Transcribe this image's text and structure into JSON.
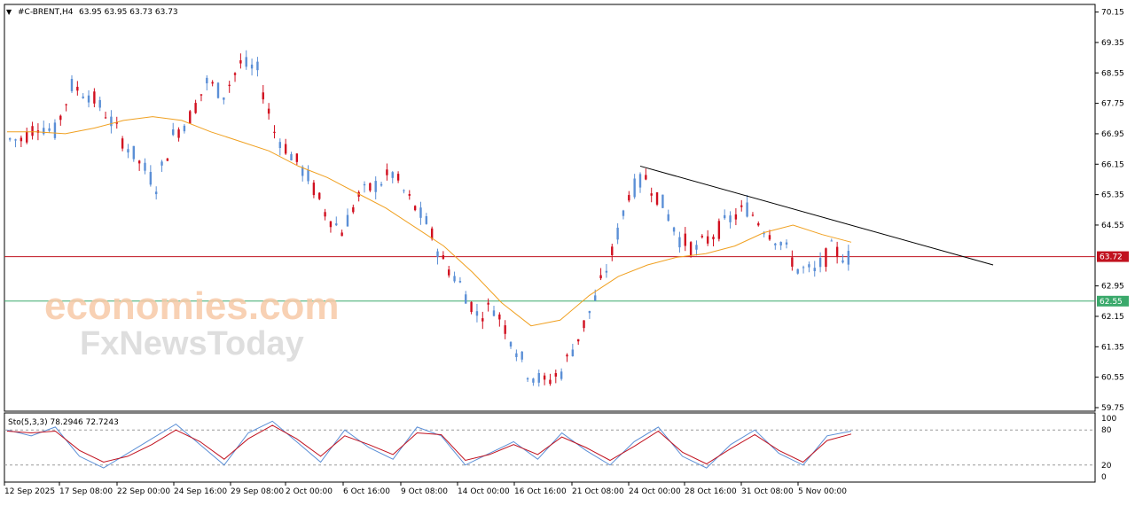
{
  "header": {
    "symbol": "#C-BRENT,H4",
    "ohlc": "63.95 63.95 63.73 63.73"
  },
  "watermark": {
    "line1": "economies.com",
    "line2": "FxNewsToday"
  },
  "oscillator": {
    "label": "Sto(5,3,3) 78.2946 72.7243",
    "levels": [
      "100",
      "80",
      "20",
      "0"
    ],
    "colors": {
      "main": "#5b8fd6",
      "signal": "#c1121f"
    }
  },
  "chart_data": {
    "type": "candlestick",
    "symbol": "#C-BRENT",
    "timeframe": "H4",
    "y_ticks": [
      "70.15",
      "69.35",
      "68.55",
      "67.75",
      "66.95",
      "66.15",
      "65.35",
      "64.55",
      "62.95",
      "62.15",
      "61.35",
      "60.55",
      "59.75"
    ],
    "ylim": [
      59.75,
      70.35
    ],
    "x_ticks": [
      "12 Sep 2025",
      "17 Sep 08:00",
      "22 Sep 00:00",
      "24 Sep 16:00",
      "29 Sep 08:00",
      "2 Oct 00:00",
      "6 Oct 16:00",
      "9 Oct 08:00",
      "14 Oct 00:00",
      "16 Oct 16:00",
      "21 Oct 08:00",
      "24 Oct 00:00",
      "28 Oct 16:00",
      "31 Oct 08:00",
      "5 Nov 00:00"
    ],
    "closes_approx": [
      66.8,
      67.2,
      67.0,
      68.2,
      68.0,
      67.5,
      66.8,
      66.2,
      65.6,
      66.9,
      67.4,
      68.3,
      68.0,
      68.8,
      68.6,
      67.0,
      66.4,
      65.8,
      64.9,
      64.4,
      65.3,
      65.6,
      65.9,
      65.2,
      64.6,
      63.6,
      63.0,
      62.2,
      62.4,
      61.6,
      60.7,
      60.4,
      60.7,
      61.6,
      62.6,
      63.8,
      65.4,
      65.8,
      65.1,
      64.2,
      63.9,
      64.3,
      64.7,
      65.0,
      64.5,
      64.1,
      63.4,
      63.3,
      63.9,
      63.7
    ],
    "moving_average": [
      67.0,
      67.0,
      66.95,
      67.1,
      67.3,
      67.4,
      67.3,
      67.0,
      66.75,
      66.5,
      66.1,
      65.8,
      65.4,
      65.0,
      64.5,
      64.0,
      63.3,
      62.5,
      61.9,
      62.05,
      62.7,
      63.2,
      63.5,
      63.7,
      63.8,
      64.0,
      64.35,
      64.55,
      64.3,
      64.1
    ],
    "stochastic_main": [
      80,
      70,
      85,
      35,
      15,
      40,
      65,
      90,
      55,
      20,
      75,
      95,
      60,
      25,
      80,
      50,
      30,
      85,
      70,
      20,
      40,
      60,
      30,
      75,
      45,
      20,
      60,
      85,
      35,
      15,
      55,
      80,
      40,
      20,
      70,
      78
    ],
    "stochastic_signal": [
      78,
      75,
      78,
      45,
      25,
      35,
      55,
      80,
      60,
      30,
      65,
      88,
      65,
      35,
      70,
      55,
      38,
      75,
      72,
      28,
      38,
      55,
      38,
      68,
      50,
      28,
      52,
      78,
      42,
      22,
      48,
      72,
      45,
      25,
      62,
      73
    ],
    "resistance_trendline": {
      "start": [
        "24 Oct 00:00",
        66.1
      ],
      "end": [
        "after 5 Nov 00:00",
        63.5
      ]
    },
    "horizontal_levels": [
      {
        "value": 63.72,
        "label": "63.72",
        "color": "#c1121f"
      },
      {
        "value": 62.55,
        "label": "62.55",
        "color": "#3aa96b"
      }
    ],
    "colors": {
      "bull": "#5b8fd6",
      "bear": "#d10f1f",
      "ma": "#f0a020",
      "trend": "#000000"
    },
    "grid": false
  }
}
